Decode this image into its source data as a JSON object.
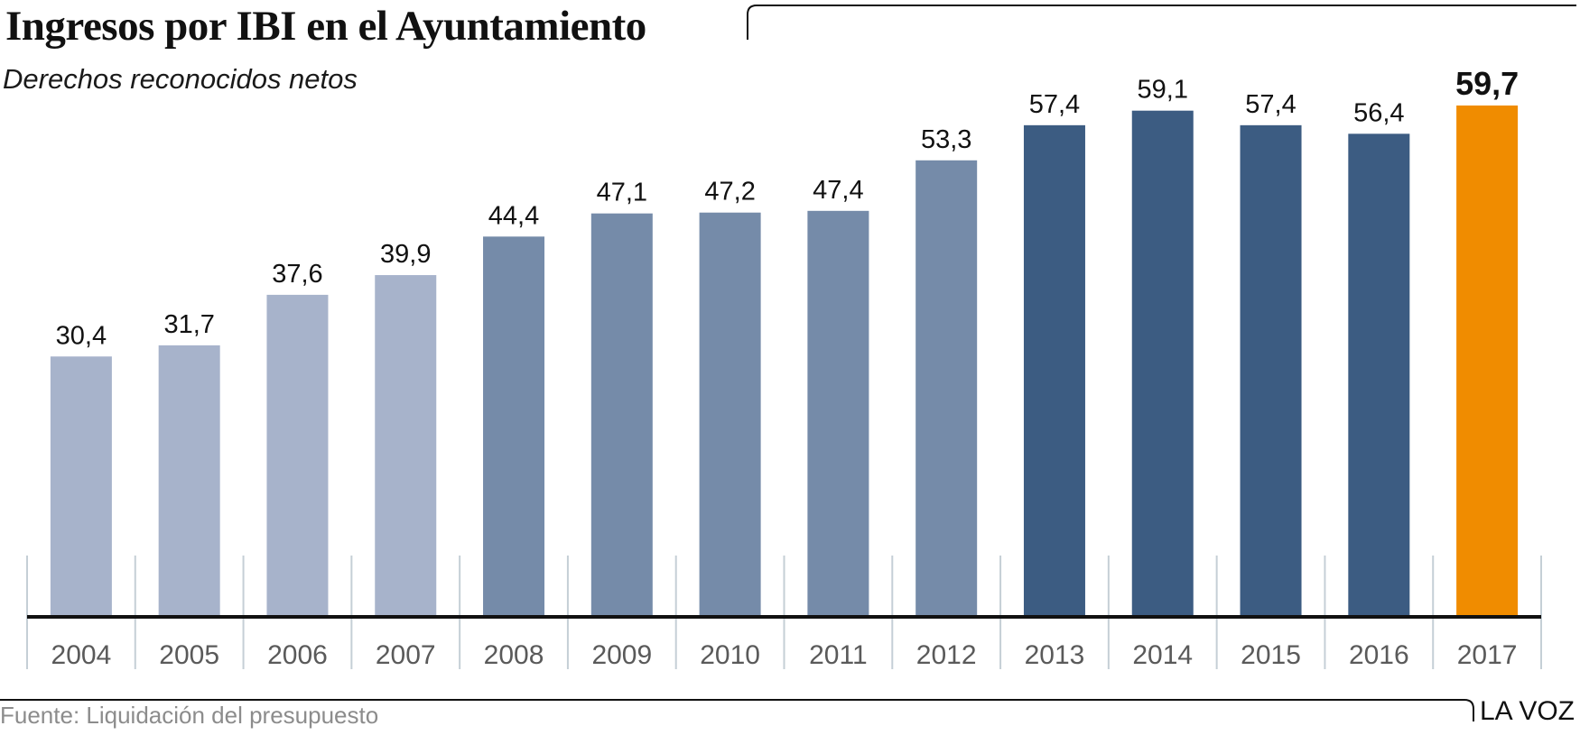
{
  "header": {
    "title": "Ingresos por IBI en el Ayuntamiento",
    "subtitle": "Derechos reconocidos netos"
  },
  "footer": {
    "source": "Fuente: Liquidación del presupuesto",
    "brand": "LA VOZ"
  },
  "colors": {
    "light": "#a7b3cb",
    "medium": "#758ba9",
    "dark": "#3c5c82",
    "highlight": "#f08c00",
    "axis": "#111111",
    "grid": "#c5cfd6",
    "tick_label": "#5a5a5a"
  },
  "chart_data": {
    "type": "bar",
    "title": "Ingresos por IBI en el Ayuntamiento",
    "subtitle": "Derechos reconocidos netos",
    "categories": [
      "2004",
      "2005",
      "2006",
      "2007",
      "2008",
      "2009",
      "2010",
      "2011",
      "2012",
      "2013",
      "2014",
      "2015",
      "2016",
      "2017"
    ],
    "values": [
      30.4,
      31.7,
      37.6,
      39.9,
      44.4,
      47.1,
      47.2,
      47.4,
      53.3,
      57.4,
      59.1,
      57.4,
      56.4,
      59.7
    ],
    "value_labels": [
      "30,4",
      "31,7",
      "37,6",
      "39,9",
      "44,4",
      "47,1",
      "47,2",
      "47,4",
      "53,3",
      "57,4",
      "59,1",
      "57,4",
      "56,4",
      "59,7"
    ],
    "color_groups": [
      "light",
      "light",
      "light",
      "light",
      "medium",
      "medium",
      "medium",
      "medium",
      "medium",
      "dark",
      "dark",
      "dark",
      "dark",
      "highlight"
    ],
    "highlight": "2017",
    "xlabel": "",
    "ylabel": "",
    "ylim": [
      0,
      59.7
    ],
    "grid": false,
    "legend": "none"
  }
}
